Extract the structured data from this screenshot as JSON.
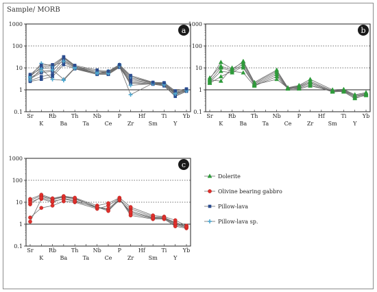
{
  "figure": {
    "ylabel": "Sample/ MORB",
    "yticks": [
      "0.1",
      "1",
      "10",
      "100",
      "1000"
    ]
  },
  "elements_row1": [
    "Sr",
    "Rb",
    "Th",
    "Nb",
    "P",
    "Hf",
    "Ti",
    "Yb"
  ],
  "elements_row2": [
    "K",
    "Ba",
    "Ta",
    "Ce",
    "Zr",
    "Sm",
    "Y"
  ],
  "legend": [
    {
      "name": "Dolerite",
      "color": "#2e9b3a",
      "marker": "triangle"
    },
    {
      "name": "Olivine bearing gabbro",
      "color": "#e0302c",
      "marker": "circle"
    },
    {
      "name": "Pillow-lava",
      "color": "#2b4c8f",
      "marker": "square"
    },
    {
      "name": "Pillow-lava sp.",
      "color": "#4fa7cf",
      "marker": "cross"
    }
  ],
  "chart_data": [
    {
      "type": "line",
      "panel_label": "a",
      "y_scale": "log",
      "ylim": [
        0.1,
        1000
      ],
      "x": [
        "Sr",
        "K",
        "Rb",
        "Ba",
        "Th",
        "Ta",
        "Nb",
        "Ce",
        "P",
        "Zr",
        "Hf",
        "Sm",
        "Ti",
        "Y",
        "Yb"
      ],
      "series": [
        {
          "group": "Pillow-lava",
          "values": [
            4.5,
            9.5,
            10,
            28,
            11,
            null,
            6,
            6,
            12,
            3,
            null,
            2,
            1.9,
            0.6,
            1
          ]
        },
        {
          "group": "Pillow-lava",
          "values": [
            3.2,
            6,
            7,
            24,
            10,
            null,
            5.5,
            5.5,
            11.5,
            2.6,
            null,
            1.9,
            1.8,
            0.7,
            0.95
          ]
        },
        {
          "group": "Pillow-lava",
          "values": [
            2.6,
            4,
            5,
            18,
            9.5,
            null,
            5,
            5,
            11,
            2.2,
            null,
            1.8,
            1.6,
            0.55,
            0.9
          ]
        },
        {
          "group": "Pillow-lava",
          "values": [
            4,
            11,
            12,
            30,
            12,
            null,
            7,
            6.5,
            13,
            3.5,
            null,
            2.1,
            2,
            0.75,
            1.05
          ]
        },
        {
          "group": "Pillow-lava",
          "values": [
            2.4,
            3,
            4,
            14,
            9,
            null,
            5,
            5,
            10.5,
            2,
            null,
            1.8,
            1.5,
            0.5,
            0.85
          ]
        },
        {
          "group": "Pillow-lava sp.",
          "values": [
            4,
            16,
            12,
            20,
            11,
            null,
            7,
            6,
            13,
            4,
            null,
            2.1,
            2,
            0.8,
            1
          ]
        },
        {
          "group": "Pillow-lava sp.",
          "values": [
            3.5,
            7,
            8,
            3,
            10,
            null,
            6,
            5.5,
            12,
            0.6,
            null,
            2,
            1.8,
            0.7,
            0.9
          ]
        },
        {
          "group": "Pillow-lava sp.",
          "values": [
            2.8,
            9,
            3,
            2.7,
            9.5,
            null,
            5.5,
            7,
            14,
            1.6,
            null,
            1.9,
            1.7,
            0.65,
            0.95
          ]
        },
        {
          "group": "Pillow-lava",
          "values": [
            5,
            13,
            14,
            32,
            13,
            null,
            8,
            7,
            14,
            4.5,
            null,
            2.2,
            2.1,
            0.9,
            1.1
          ]
        }
      ]
    },
    {
      "type": "line",
      "panel_label": "b",
      "y_scale": "log",
      "ylim": [
        0.1,
        1000
      ],
      "x": [
        "Sr",
        "K",
        "Rb",
        "Ba",
        "Th",
        "Ta",
        "Nb",
        "Ce",
        "P",
        "Zr",
        "Hf",
        "Sm",
        "Ti",
        "Y",
        "Yb"
      ],
      "series": [
        {
          "group": "Dolerite",
          "values": [
            3,
            18,
            9,
            18,
            2,
            null,
            7,
            1.2,
            1.5,
            2.5,
            null,
            0.9,
            1,
            0.55,
            0.7
          ]
        },
        {
          "group": "Dolerite",
          "values": [
            2.5,
            10,
            7,
            15,
            1.8,
            null,
            6,
            1.15,
            1.4,
            2.2,
            null,
            0.85,
            0.95,
            0.5,
            0.65
          ]
        },
        {
          "group": "Dolerite",
          "values": [
            2.2,
            7,
            6,
            12,
            1.6,
            null,
            5,
            1.1,
            1.3,
            2,
            null,
            0.8,
            0.9,
            0.5,
            0.6
          ]
        },
        {
          "group": "Dolerite",
          "values": [
            3.5,
            12,
            8,
            20,
            2.2,
            null,
            8,
            1.25,
            1.6,
            3,
            null,
            1,
            1.05,
            0.6,
            0.75
          ]
        },
        {
          "group": "Dolerite",
          "values": [
            2,
            4,
            7,
            6,
            1.5,
            null,
            4,
            1.1,
            1.2,
            1.7,
            null,
            0.8,
            0.85,
            0.45,
            0.55
          ]
        },
        {
          "group": "Dolerite",
          "values": [
            2.8,
            2.5,
            10,
            10,
            1.7,
            null,
            3,
            1.2,
            1.1,
            1.5,
            null,
            0.9,
            0.8,
            0.4,
            0.6
          ]
        }
      ]
    },
    {
      "type": "line",
      "panel_label": "c",
      "y_scale": "log",
      "ylim": [
        0.1,
        1000
      ],
      "x": [
        "Sr",
        "K",
        "Rb",
        "Ba",
        "Th",
        "Ta",
        "Nb",
        "Ce",
        "P",
        "Zr",
        "Hf",
        "Sm",
        "Ti",
        "Y",
        "Yb"
      ],
      "series": [
        {
          "group": "Olivine bearing gabbro",
          "values": [
            12,
            20,
            14,
            18,
            15,
            null,
            6,
            5,
            13,
            5,
            null,
            2.2,
            2,
            1.2,
            0.8
          ]
        },
        {
          "group": "Olivine bearing gabbro",
          "values": [
            8,
            18,
            13,
            17,
            14,
            null,
            6,
            4.5,
            12,
            4,
            null,
            2,
            1.9,
            1,
            0.75
          ]
        },
        {
          "group": "Olivine bearing gabbro",
          "values": [
            1.3,
            14,
            10,
            15,
            12,
            null,
            5.5,
            5,
            14,
            3,
            null,
            1.8,
            1.8,
            0.9,
            0.7
          ]
        },
        {
          "group": "Olivine bearing gabbro",
          "values": [
            2,
            5.5,
            7,
            11,
            10,
            null,
            5,
            7,
            15,
            2.5,
            null,
            1.7,
            1.7,
            0.8,
            0.65
          ]
        },
        {
          "group": "Olivine bearing gabbro",
          "values": [
            14,
            22,
            15,
            19,
            16,
            null,
            7,
            9,
            16,
            6,
            null,
            2.5,
            2.2,
            1.5,
            0.85
          ]
        },
        {
          "group": "Olivine bearing gabbro",
          "values": [
            10,
            16,
            11,
            14,
            11,
            null,
            6,
            4,
            13,
            3.5,
            null,
            1.9,
            2,
            1.1,
            0.75
          ]
        }
      ]
    }
  ]
}
